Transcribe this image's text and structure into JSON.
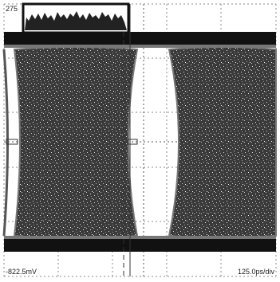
{
  "screen": {
    "labels": {
      "top_left": "275",
      "bottom_left": "-822.5mV",
      "bottom_right": "125.0ps/div"
    }
  }
}
